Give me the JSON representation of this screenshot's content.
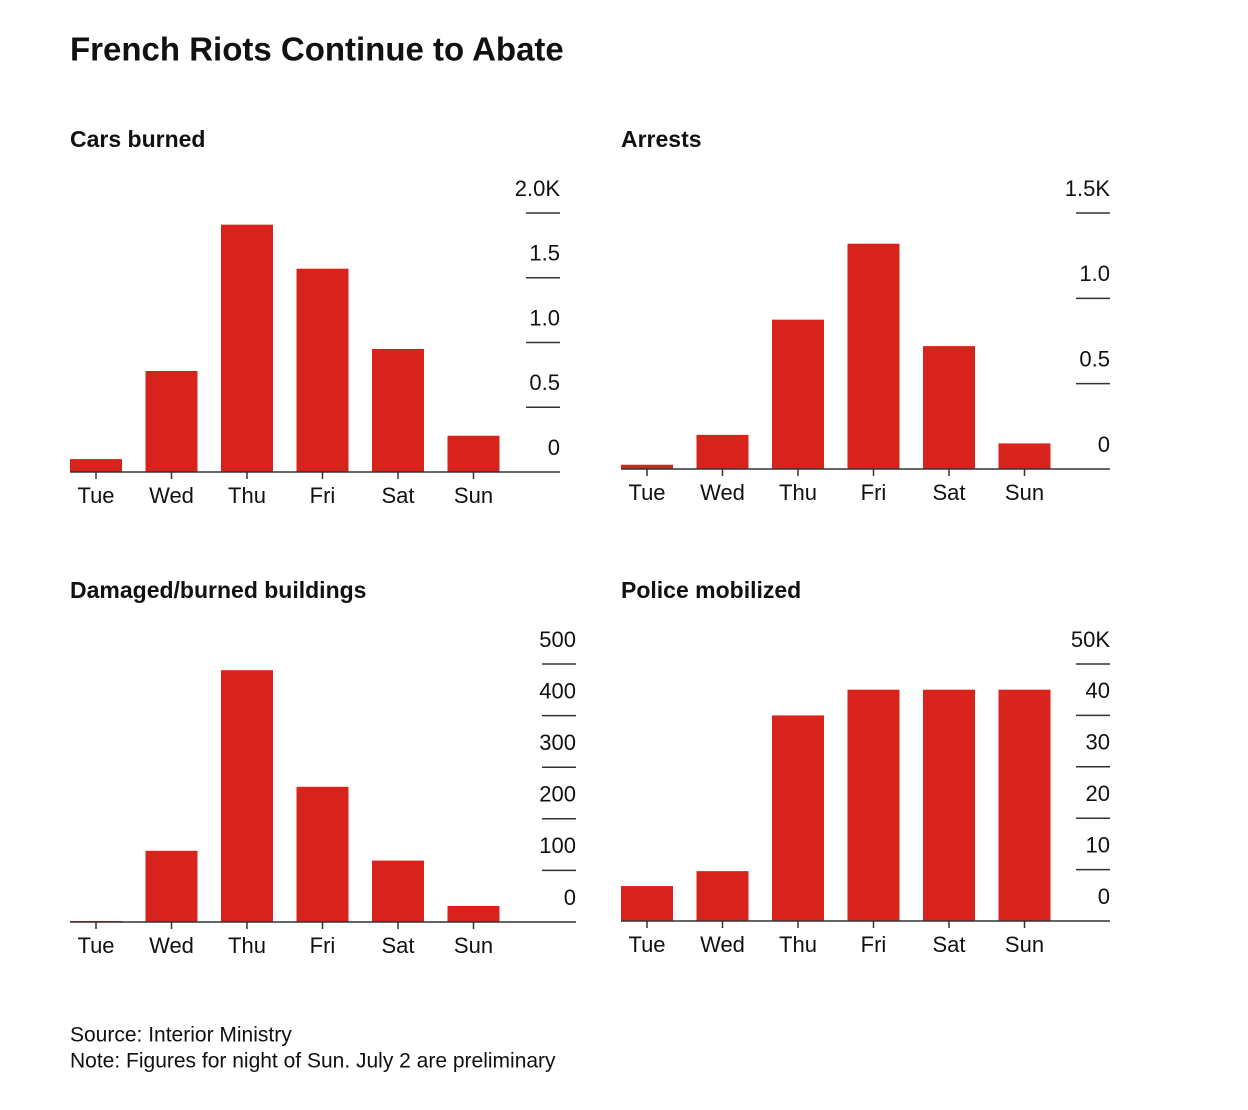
{
  "title": "French Riots Continue to Abate",
  "chart_data": [
    {
      "type": "bar",
      "title": "Cars burned",
      "categories": [
        "Tue",
        "Wed",
        "Thu",
        "Fri",
        "Sat",
        "Sun"
      ],
      "values": [
        100,
        780,
        1910,
        1570,
        950,
        280
      ],
      "color": "#d8231c",
      "ylim": [
        0,
        2000
      ],
      "yticks": [
        0,
        {
          "value": 500,
          "label": "0.5"
        },
        {
          "value": 1000,
          "label": "1.0"
        },
        {
          "value": 1500,
          "label": "1.5"
        },
        {
          "value": 2000,
          "label": "2.0K"
        }
      ]
    },
    {
      "type": "bar",
      "title": "Arrests",
      "categories": [
        "Tue",
        "Wed",
        "Thu",
        "Fri",
        "Sat",
        "Sun"
      ],
      "values": [
        25,
        200,
        875,
        1320,
        720,
        150
      ],
      "color": "#d8231c",
      "ylim": [
        0,
        1500
      ],
      "yticks": [
        0,
        {
          "value": 500,
          "label": "0.5"
        },
        {
          "value": 1000,
          "label": "1.0"
        },
        {
          "value": 1500,
          "label": "1.5K"
        }
      ]
    },
    {
      "type": "bar",
      "title": "Damaged/burned buildings",
      "categories": [
        "Tue",
        "Wed",
        "Thu",
        "Fri",
        "Sat",
        "Sun"
      ],
      "values": [
        2,
        138,
        488,
        262,
        119,
        31
      ],
      "color": "#d8231c",
      "ylim": [
        0,
        500
      ],
      "yticks": [
        0,
        100,
        200,
        300,
        400,
        500
      ]
    },
    {
      "type": "bar",
      "title": "Police mobilized",
      "categories": [
        "Tue",
        "Wed",
        "Thu",
        "Fri",
        "Sat",
        "Sun"
      ],
      "values": [
        6800,
        9700,
        40000,
        45000,
        45000,
        45000
      ],
      "color": "#d8231c",
      "ylim": [
        0,
        50000
      ],
      "yticks": [
        0,
        {
          "value": 10000,
          "label": "10"
        },
        {
          "value": 20000,
          "label": "20"
        },
        {
          "value": 30000,
          "label": "30"
        },
        {
          "value": 40000,
          "label": "40"
        },
        {
          "value": 50000,
          "label": "50K"
        }
      ]
    }
  ],
  "source": "Source: Interior Ministry",
  "note": "Note: Figures for night of Sun. July 2 are preliminary"
}
